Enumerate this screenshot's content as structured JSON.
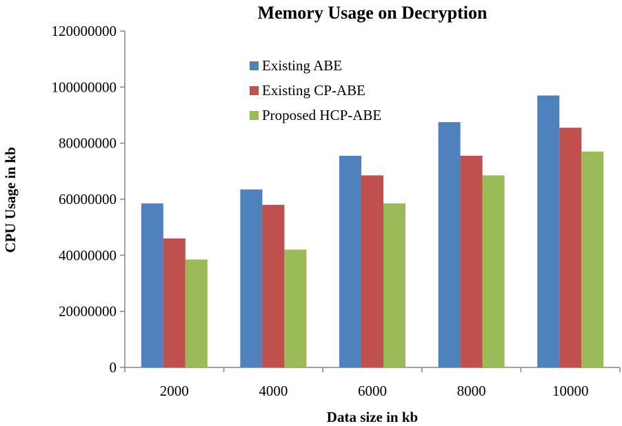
{
  "chart_data": {
    "type": "bar",
    "title": "Memory Usage on Decryption",
    "xlabel": "Data size in kb",
    "ylabel": "CPU Usage in kb",
    "categories": [
      "2000",
      "4000",
      "6000",
      "8000",
      "10000"
    ],
    "ylim": [
      0,
      120000000
    ],
    "yticks": [
      "0",
      "20000000",
      "40000000",
      "60000000",
      "80000000",
      "100000000",
      "120000000"
    ],
    "grid": false,
    "legend_position": "top-center",
    "series": [
      {
        "name": "Existing ABE",
        "color": "#4F81BD",
        "values": [
          58500000,
          63500000,
          75500000,
          87500000,
          97000000
        ]
      },
      {
        "name": "Existing CP-ABE",
        "color": "#C0504D",
        "values": [
          46000000,
          58000000,
          68500000,
          75500000,
          85500000
        ]
      },
      {
        "name": "Proposed HCP-ABE",
        "color": "#9BBB59",
        "values": [
          38500000,
          42000000,
          58500000,
          68500000,
          77000000
        ]
      }
    ]
  }
}
